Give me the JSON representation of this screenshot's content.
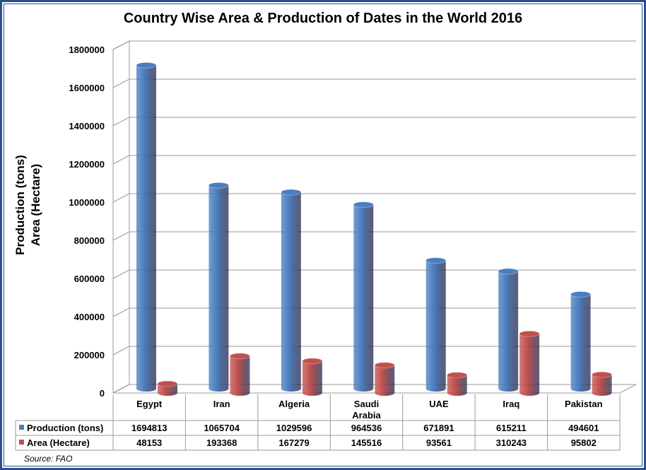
{
  "chart_data": {
    "type": "bar",
    "title": "Country Wise Area & Production of Dates in the World 2016",
    "ylabel_lines": [
      "Production (tons)",
      "Area (Hectare)"
    ],
    "categories": [
      [
        "Egypt"
      ],
      [
        "Iran"
      ],
      [
        "Algeria"
      ],
      [
        "Saudi",
        "Arabia"
      ],
      [
        "UAE"
      ],
      [
        "Iraq"
      ],
      [
        "Pakistan"
      ]
    ],
    "yticks": [
      "0",
      "200000",
      "400000",
      "600000",
      "800000",
      "1000000",
      "1200000",
      "1400000",
      "1600000",
      "1800000"
    ],
    "ylim": [
      0,
      1800000
    ],
    "series": [
      {
        "name": "Production (tons)",
        "color": "#4a7ebf",
        "values": [
          1694813,
          1065704,
          1029596,
          964536,
          671891,
          615211,
          494601
        ]
      },
      {
        "name": "Area (Hectare)",
        "color": "#c0504d",
        "values": [
          48153,
          193368,
          167279,
          145516,
          93561,
          310243,
          95802
        ]
      }
    ],
    "source": "Source: FAO",
    "grid": true
  }
}
